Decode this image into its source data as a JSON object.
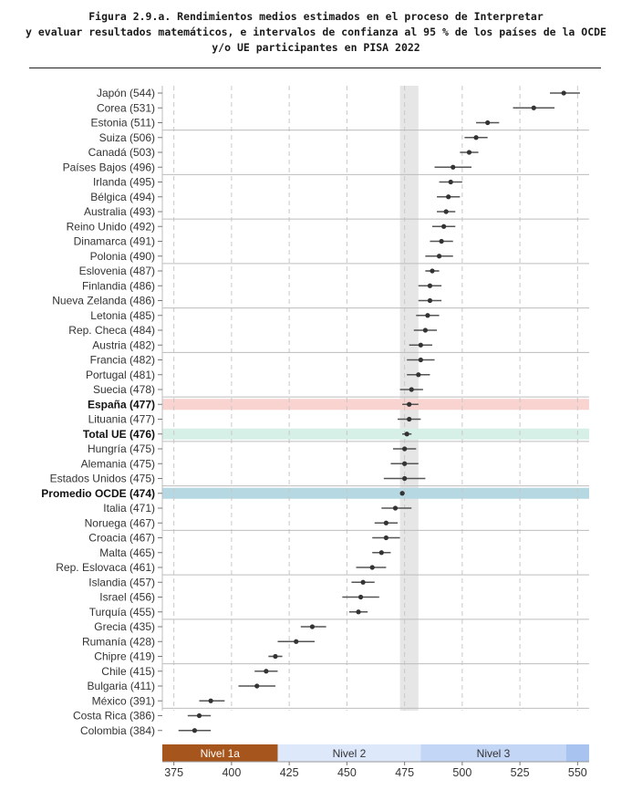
{
  "title_lines": [
    "Figura 2.9.a. Rendimientos medios estimados en el proceso de Interpretar",
    "y evaluar resultados matemáticos, e intervalos de confianza al 95 % de los países de la OCDE",
    "y/o UE participantes en PISA 2022"
  ],
  "chart_data": {
    "type": "scatter",
    "title": "Figura 2.9.a. Rendimientos medios estimados en el proceso de Interpretar y evaluar resultados matemáticos, e intervalos de confianza al 95 % de los países de la OCDE y/o UE participantes en PISA 2022",
    "xlabel": "",
    "ylabel": "",
    "xlim": [
      370,
      555
    ],
    "xticks": [
      375,
      400,
      425,
      450,
      475,
      500,
      525,
      550
    ],
    "grid": true,
    "legend": "none",
    "reference_band": {
      "x0": 473,
      "x1": 481,
      "color": "#e6e6e6"
    },
    "levels": [
      {
        "label": "Nivel 1a",
        "x0": 370,
        "x1": 420,
        "color": "#a6551d",
        "text_color": "#ffffff"
      },
      {
        "label": "Nivel 2",
        "x0": 420,
        "x1": 482,
        "color": "#dde8fb",
        "text_color": "#333333"
      },
      {
        "label": "Nivel 3",
        "x0": 482,
        "x1": 545,
        "color": "#c3d6f6",
        "text_color": "#333333"
      },
      {
        "label": "",
        "x0": 545,
        "x1": 555,
        "color": "#a8c3f0",
        "text_color": "#333333"
      }
    ],
    "highlight_colors": {
      "spain": "#f8d3cf",
      "eu": "#d6f0e8",
      "oecd": "#b5d8e2"
    },
    "group_breaks_after": [
      2,
      5,
      8,
      11,
      14,
      17,
      20,
      23,
      26,
      29,
      32,
      35,
      38,
      41,
      44
    ],
    "points": [
      {
        "label": "Japón (544)",
        "value": 544,
        "low": 538,
        "high": 551
      },
      {
        "label": "Corea (531)",
        "value": 531,
        "low": 522,
        "high": 540
      },
      {
        "label": "Estonia (511)",
        "value": 511,
        "low": 506,
        "high": 516
      },
      {
        "label": "Suiza (506)",
        "value": 506,
        "low": 501,
        "high": 511
      },
      {
        "label": "Canadá (503)",
        "value": 503,
        "low": 499,
        "high": 507
      },
      {
        "label": "Países Bajos (496)",
        "value": 496,
        "low": 488,
        "high": 504
      },
      {
        "label": "Irlanda (495)",
        "value": 495,
        "low": 490,
        "high": 500
      },
      {
        "label": "Bélgica (494)",
        "value": 494,
        "low": 489,
        "high": 499
      },
      {
        "label": "Australia (493)",
        "value": 493,
        "low": 489,
        "high": 497
      },
      {
        "label": "Reino Unido (492)",
        "value": 492,
        "low": 487,
        "high": 497
      },
      {
        "label": "Dinamarca (491)",
        "value": 491,
        "low": 486,
        "high": 496
      },
      {
        "label": "Polonia (490)",
        "value": 490,
        "low": 484,
        "high": 496
      },
      {
        "label": "Eslovenia (487)",
        "value": 487,
        "low": 484,
        "high": 490
      },
      {
        "label": "Finlandia (486)",
        "value": 486,
        "low": 481,
        "high": 491
      },
      {
        "label": "Nueva Zelanda (486)",
        "value": 486,
        "low": 481,
        "high": 491
      },
      {
        "label": "Letonia (485)",
        "value": 485,
        "low": 480,
        "high": 490
      },
      {
        "label": "Rep. Checa (484)",
        "value": 484,
        "low": 479,
        "high": 489
      },
      {
        "label": "Austria (482)",
        "value": 482,
        "low": 477,
        "high": 487
      },
      {
        "label": "Francia (482)",
        "value": 482,
        "low": 476,
        "high": 488
      },
      {
        "label": "Portugal (481)",
        "value": 481,
        "low": 476,
        "high": 486
      },
      {
        "label": "Suecia (478)",
        "value": 478,
        "low": 473,
        "high": 483
      },
      {
        "label": "España (477)",
        "value": 477,
        "low": 474,
        "high": 481,
        "bold": true,
        "highlight": "spain"
      },
      {
        "label": "Lituania (477)",
        "value": 477,
        "low": 472,
        "high": 482
      },
      {
        "label": "Total UE (476)",
        "value": 476,
        "low": 474,
        "high": 478,
        "bold": true,
        "highlight": "eu"
      },
      {
        "label": "Hungría (475)",
        "value": 475,
        "low": 470,
        "high": 480
      },
      {
        "label": "Alemania (475)",
        "value": 475,
        "low": 469,
        "high": 481
      },
      {
        "label": "Estados Unidos (475)",
        "value": 475,
        "low": 466,
        "high": 484
      },
      {
        "label": "Promedio OCDE (474)",
        "value": 474,
        "low": 473,
        "high": 475,
        "bold": true,
        "highlight": "oecd"
      },
      {
        "label": "Italia (471)",
        "value": 471,
        "low": 465,
        "high": 478
      },
      {
        "label": "Noruega (467)",
        "value": 467,
        "low": 462,
        "high": 472
      },
      {
        "label": "Croacia (467)",
        "value": 467,
        "low": 461,
        "high": 473
      },
      {
        "label": "Malta (465)",
        "value": 465,
        "low": 461,
        "high": 469
      },
      {
        "label": "Rep. Eslovaca (461)",
        "value": 461,
        "low": 454,
        "high": 467
      },
      {
        "label": "Islandia (457)",
        "value": 457,
        "low": 452,
        "high": 462
      },
      {
        "label": "Israel (456)",
        "value": 456,
        "low": 448,
        "high": 464
      },
      {
        "label": "Turquía (455)",
        "value": 455,
        "low": 451,
        "high": 459
      },
      {
        "label": "Grecia (435)",
        "value": 435,
        "low": 430,
        "high": 441
      },
      {
        "label": "Rumanía (428)",
        "value": 428,
        "low": 420,
        "high": 436
      },
      {
        "label": "Chipre (419)",
        "value": 419,
        "low": 416,
        "high": 422
      },
      {
        "label": "Chile (415)",
        "value": 415,
        "low": 410,
        "high": 420
      },
      {
        "label": "Bulgaria (411)",
        "value": 411,
        "low": 403,
        "high": 419
      },
      {
        "label": "México (391)",
        "value": 391,
        "low": 386,
        "high": 397
      },
      {
        "label": "Costa Rica (386)",
        "value": 386,
        "low": 381,
        "high": 391
      },
      {
        "label": "Colombia (384)",
        "value": 384,
        "low": 377,
        "high": 391
      }
    ]
  }
}
